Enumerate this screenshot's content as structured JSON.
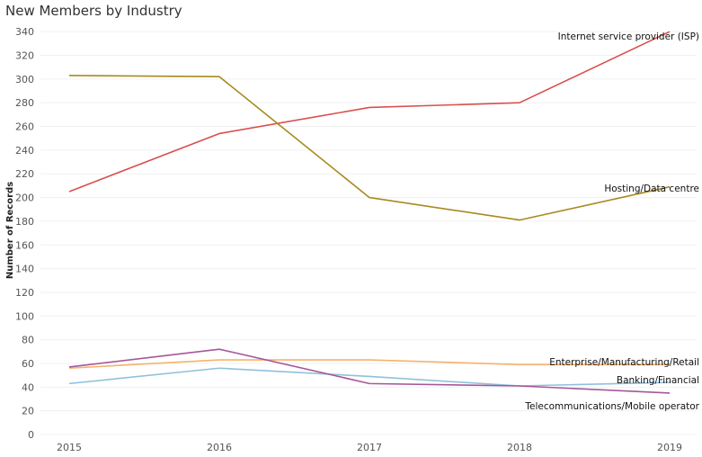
{
  "title": "New Members by Industry",
  "chart_data": {
    "type": "line",
    "title": "New Members by Industry",
    "xlabel": "",
    "ylabel": "Number of Records",
    "x": [
      "2015",
      "2016",
      "2017",
      "2018",
      "2019"
    ],
    "ylim": [
      0,
      350
    ],
    "yticks": [
      0,
      20,
      40,
      60,
      80,
      100,
      120,
      140,
      160,
      180,
      200,
      220,
      240,
      260,
      280,
      300,
      320,
      340
    ],
    "grid": true,
    "legend": "labels at line ends",
    "series": [
      {
        "name": "Internet service provider (ISP)",
        "color": "#d94f4f",
        "values": [
          205,
          254,
          276,
          280,
          340
        ]
      },
      {
        "name": "Hosting/Data centre",
        "color": "#a88a1e",
        "values": [
          303,
          302,
          200,
          181,
          209
        ]
      },
      {
        "name": "Enterprise/Manufacturing/Retail",
        "color": "#f6b26b",
        "values": [
          56,
          63,
          63,
          59,
          59
        ]
      },
      {
        "name": "Banking/Financial",
        "color": "#8fc1dc",
        "values": [
          43,
          56,
          49,
          41,
          44
        ]
      },
      {
        "name": "Telecommunications/Mobile operator",
        "color": "#a6579a",
        "values": [
          57,
          72,
          43,
          41,
          35
        ]
      }
    ]
  }
}
